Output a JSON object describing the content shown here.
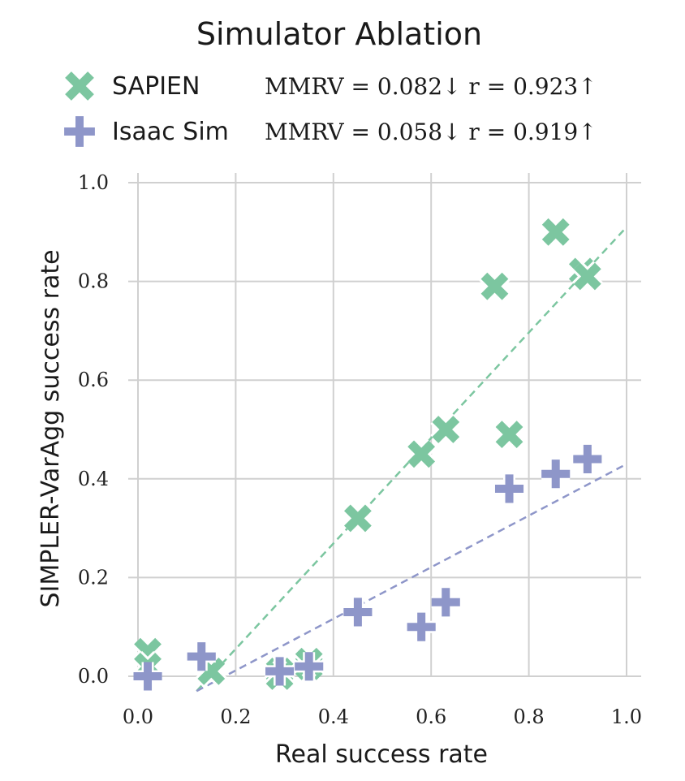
{
  "chart_data": {
    "type": "scatter",
    "title": "Simulator Ablation",
    "xlabel": "Real success rate",
    "ylabel": "SIMPLER-VarAgg success rate",
    "xlim": [
      0.0,
      1.0
    ],
    "ylim": [
      0.0,
      1.0
    ],
    "xticks": [
      "0.0",
      "0.2",
      "0.4",
      "0.6",
      "0.8",
      "1.0"
    ],
    "yticks": [
      "0.0",
      "0.2",
      "0.4",
      "0.6",
      "0.8",
      "1.0"
    ],
    "grid": true,
    "legend_position": "top",
    "series": [
      {
        "name": "SAPIEN",
        "marker": "x",
        "color": "#7cc6a0",
        "stats": "MMRV = 0.082↓  r = 0.923↑",
        "x": [
          0.02,
          0.02,
          0.15,
          0.29,
          0.29,
          0.35,
          0.35,
          0.45,
          0.58,
          0.63,
          0.73,
          0.76,
          0.855,
          0.91,
          0.92
        ],
        "y": [
          0.05,
          0.02,
          0.01,
          0.01,
          0.0,
          0.02,
          0.03,
          0.32,
          0.45,
          0.5,
          0.79,
          0.49,
          0.9,
          0.82,
          0.81
        ],
        "trend": [
          [
            0.12,
            -0.03
          ],
          [
            1.0,
            0.91
          ]
        ]
      },
      {
        "name": "Isaac Sim",
        "marker": "plus",
        "color": "#8e96c9",
        "stats": "MMRV = 0.058↓  r = 0.919↑",
        "x": [
          0.02,
          0.13,
          0.29,
          0.35,
          0.45,
          0.58,
          0.63,
          0.76,
          0.855,
          0.92
        ],
        "y": [
          0.0,
          0.04,
          0.01,
          0.02,
          0.13,
          0.1,
          0.15,
          0.38,
          0.41,
          0.44
        ],
        "trend": [
          [
            0.12,
            -0.03
          ],
          [
            1.0,
            0.43
          ]
        ]
      }
    ]
  }
}
